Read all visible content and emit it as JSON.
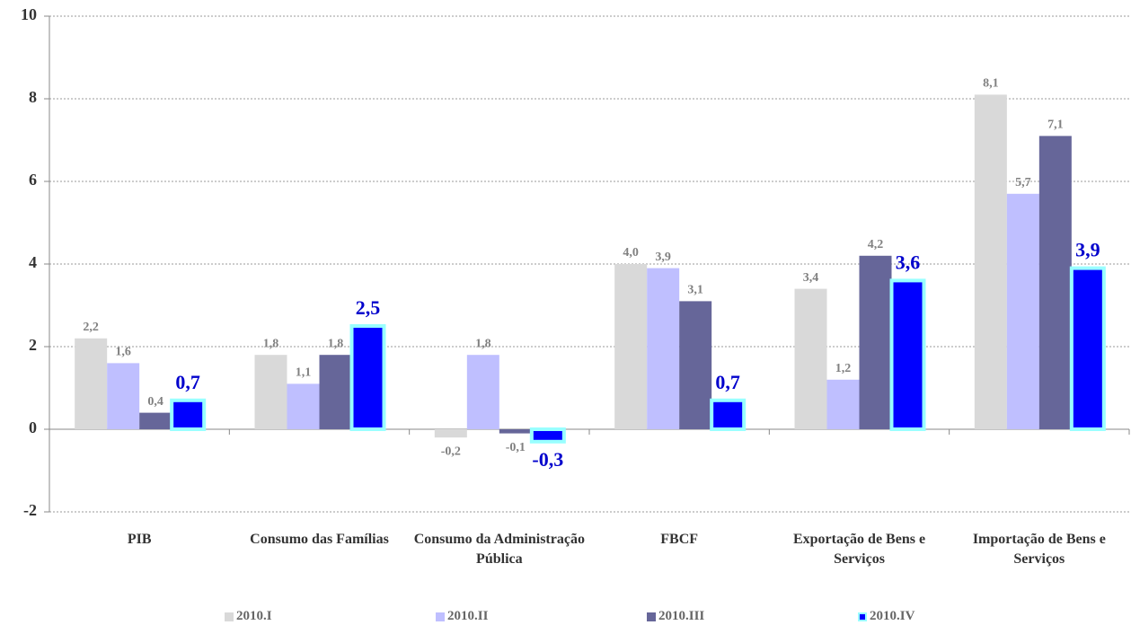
{
  "chart_data": {
    "type": "bar",
    "categories": [
      "PIB",
      "Consumo das Famílias",
      "Consumo da Administração Pública",
      "FBCF",
      "Exportação de Bens e Serviços",
      "Importação de Bens e Serviços"
    ],
    "series": [
      {
        "name": "2010.I",
        "color": "#d9d9d9",
        "values": [
          2.2,
          1.8,
          -0.2,
          4.0,
          3.4,
          8.1
        ],
        "value_labels": [
          "2,2",
          "1,8",
          "-0,2",
          "4,0",
          "3,4",
          "8,1"
        ]
      },
      {
        "name": "2010.II",
        "color": "#bfbfff",
        "values": [
          1.6,
          1.1,
          1.8,
          3.9,
          1.2,
          5.7
        ],
        "value_labels": [
          "1,6",
          "1,1",
          "1,8",
          "3,9",
          "1,2",
          "5,7"
        ]
      },
      {
        "name": "2010.III",
        "color": "#666699",
        "values": [
          0.4,
          1.8,
          -0.1,
          3.1,
          4.2,
          7.1
        ],
        "value_labels": [
          "0,4",
          "1,8",
          "-0,1",
          "3,1",
          "4,2",
          "7,1"
        ]
      },
      {
        "name": "2010.IV",
        "color": "#0000ff",
        "edgecolor": "#99ffff",
        "values": [
          0.7,
          2.5,
          -0.3,
          0.7,
          3.6,
          3.9
        ],
        "value_labels": [
          "0,7",
          "2,5",
          "-0,3",
          "0,7",
          "3,6",
          "3,9"
        ]
      }
    ],
    "ylim": [
      -2,
      10
    ],
    "yticks": [
      -2,
      0,
      2,
      4,
      6,
      8,
      10
    ],
    "grid": true,
    "legend": "bottom"
  }
}
